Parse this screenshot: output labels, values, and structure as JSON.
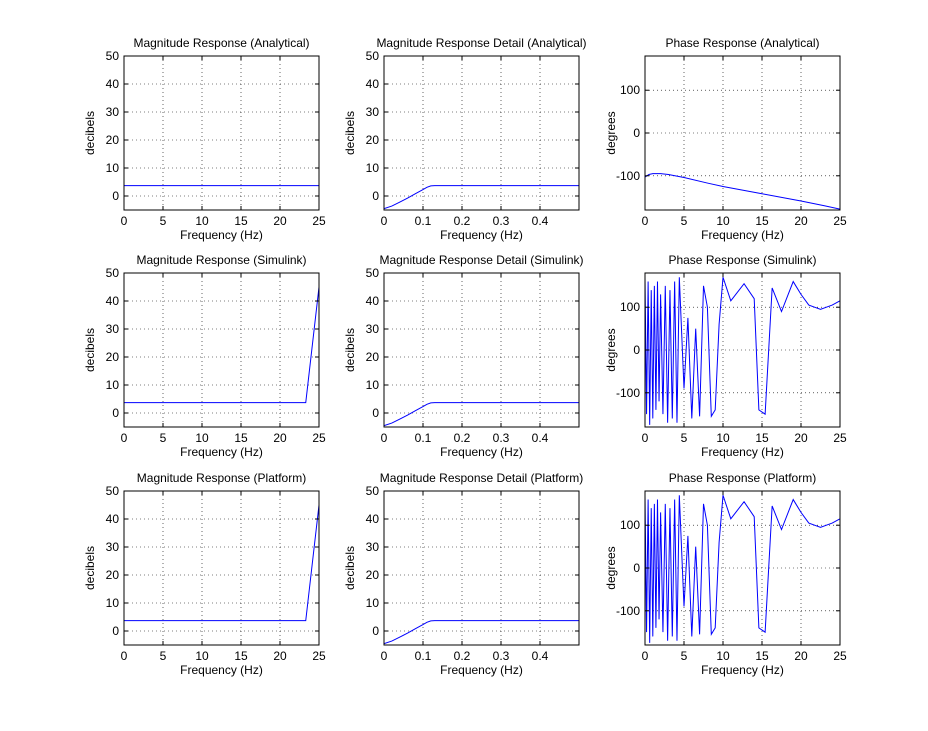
{
  "figure": {
    "background": "#ffffff",
    "line_color": "#0000ff",
    "grid": "dotted"
  },
  "chart_data": [
    {
      "type": "line",
      "title": "Magnitude Response (Analytical)",
      "xlabel": "Frequency (Hz)",
      "ylabel": "decibels",
      "xlim": [
        0,
        25
      ],
      "ylim": [
        -5,
        50
      ],
      "xticks": [
        0,
        5,
        10,
        15,
        20,
        25
      ],
      "xtick_labels": [
        "0",
        "5",
        "10",
        "15",
        "20",
        "25"
      ],
      "yticks": [
        0,
        10,
        20,
        30,
        40,
        50
      ],
      "ytick_labels": [
        "0",
        "10",
        "20",
        "30",
        "40",
        "50"
      ],
      "grid": true,
      "series": [
        {
          "x": [
            0,
            25
          ],
          "y": [
            3.7,
            3.7
          ]
        }
      ]
    },
    {
      "type": "line",
      "title": "Magnitude Response Detail (Analytical)",
      "xlabel": "Frequency (Hz)",
      "ylabel": "decibels",
      "xlim": [
        0,
        0.5
      ],
      "ylim": [
        -5,
        50
      ],
      "xticks": [
        0,
        0.1,
        0.2,
        0.3,
        0.4
      ],
      "xtick_labels": [
        "0",
        "0.1",
        "0.2",
        "0.3",
        "0.4"
      ],
      "yticks": [
        0,
        10,
        20,
        30,
        40,
        50
      ],
      "ytick_labels": [
        "0",
        "10",
        "20",
        "30",
        "40",
        "50"
      ],
      "grid": true,
      "series": [
        {
          "x": [
            0,
            0.02,
            0.04,
            0.06,
            0.08,
            0.1,
            0.11,
            0.12,
            0.13,
            0.15,
            0.2,
            0.3,
            0.4,
            0.5
          ],
          "y": [
            -4.5,
            -3.6,
            -2.2,
            -0.8,
            0.8,
            2.3,
            3.1,
            3.6,
            3.7,
            3.7,
            3.7,
            3.7,
            3.7,
            3.7
          ]
        }
      ]
    },
    {
      "type": "line",
      "title": "Phase Response (Analytical)",
      "xlabel": "Frequency (Hz)",
      "ylabel": "degrees",
      "xlim": [
        0,
        25
      ],
      "ylim": [
        -180,
        180
      ],
      "xticks": [
        0,
        5,
        10,
        15,
        20,
        25
      ],
      "xtick_labels": [
        "0",
        "5",
        "10",
        "15",
        "20",
        "25"
      ],
      "yticks": [
        -100,
        0,
        100
      ],
      "ytick_labels": [
        "-100",
        "0",
        "100"
      ],
      "grid": true,
      "series": [
        {
          "x": [
            0,
            0.5,
            1,
            2,
            3,
            5,
            8,
            10,
            15,
            20,
            23,
            25
          ],
          "y": [
            -103,
            -97,
            -95,
            -95,
            -97,
            -104,
            -117,
            -125,
            -142,
            -159,
            -170,
            -178
          ]
        }
      ]
    },
    {
      "type": "line",
      "title": "Magnitude Response (Simulink)",
      "xlabel": "Frequency (Hz)",
      "ylabel": "decibels",
      "xlim": [
        0,
        25
      ],
      "ylim": [
        -5,
        50
      ],
      "xticks": [
        0,
        5,
        10,
        15,
        20,
        25
      ],
      "xtick_labels": [
        "0",
        "5",
        "10",
        "15",
        "20",
        "25"
      ],
      "yticks": [
        0,
        10,
        20,
        30,
        40,
        50
      ],
      "ytick_labels": [
        "0",
        "10",
        "20",
        "30",
        "40",
        "50"
      ],
      "grid": true,
      "series": [
        {
          "x": [
            0,
            23.3,
            25
          ],
          "y": [
            3.7,
            3.7,
            45
          ]
        }
      ]
    },
    {
      "type": "line",
      "title": "Magnitude Response Detail (Simulink)",
      "xlabel": "Frequency (Hz)",
      "ylabel": "decibels",
      "xlim": [
        0,
        0.5
      ],
      "ylim": [
        -5,
        50
      ],
      "xticks": [
        0,
        0.1,
        0.2,
        0.3,
        0.4
      ],
      "xtick_labels": [
        "0",
        "0.1",
        "0.2",
        "0.3",
        "0.4"
      ],
      "yticks": [
        0,
        10,
        20,
        30,
        40,
        50
      ],
      "ytick_labels": [
        "0",
        "10",
        "20",
        "30",
        "40",
        "50"
      ],
      "grid": true,
      "series": [
        {
          "x": [
            0,
            0.02,
            0.04,
            0.06,
            0.08,
            0.1,
            0.11,
            0.12,
            0.13,
            0.15,
            0.2,
            0.3,
            0.4,
            0.5
          ],
          "y": [
            -4.5,
            -3.6,
            -2.2,
            -0.8,
            0.8,
            2.3,
            3.1,
            3.6,
            3.7,
            3.7,
            3.7,
            3.7,
            3.7,
            3.7
          ]
        }
      ]
    },
    {
      "type": "line",
      "title": "Phase Response (Simulink)",
      "xlabel": "Frequency (Hz)",
      "ylabel": "degrees",
      "xlim": [
        0,
        25
      ],
      "ylim": [
        -180,
        180
      ],
      "xticks": [
        0,
        5,
        10,
        15,
        20,
        25
      ],
      "xtick_labels": [
        "0",
        "5",
        "10",
        "15",
        "20",
        "25"
      ],
      "yticks": [
        -100,
        0,
        100
      ],
      "ytick_labels": [
        "-100",
        "0",
        "100"
      ],
      "grid": true,
      "series": [
        {
          "x": [
            0,
            0.2,
            0.4,
            0.6,
            0.8,
            1.0,
            1.2,
            1.4,
            1.6,
            1.8,
            2.0,
            2.3,
            2.6,
            2.9,
            3.2,
            3.5,
            3.8,
            4.1,
            4.4,
            5.0,
            5.5,
            6.0,
            6.5,
            7.0,
            7.5,
            8.0,
            8.5,
            9.0,
            9.5,
            10.0,
            11.0,
            12.7,
            14.0,
            14.6,
            15.4,
            16.3,
            17.5,
            19.0,
            20.0,
            21.0,
            22.5,
            24.0,
            25.0
          ],
          "y": [
            170,
            -150,
            160,
            -175,
            140,
            -160,
            150,
            -140,
            160,
            -120,
            130,
            -150,
            150,
            -170,
            140,
            -160,
            160,
            -170,
            170,
            -90,
            75,
            -160,
            50,
            -155,
            150,
            100,
            -155,
            -140,
            60,
            170,
            115,
            155,
            120,
            -140,
            -150,
            145,
            90,
            160,
            130,
            105,
            95,
            105,
            115
          ]
        }
      ]
    },
    {
      "type": "line",
      "title": "Magnitude Response (Platform)",
      "xlabel": "Frequency (Hz)",
      "ylabel": "decibels",
      "xlim": [
        0,
        25
      ],
      "ylim": [
        -5,
        50
      ],
      "xticks": [
        0,
        5,
        10,
        15,
        20,
        25
      ],
      "xtick_labels": [
        "0",
        "5",
        "10",
        "15",
        "20",
        "25"
      ],
      "yticks": [
        0,
        10,
        20,
        30,
        40,
        50
      ],
      "ytick_labels": [
        "0",
        "10",
        "20",
        "30",
        "40",
        "50"
      ],
      "grid": true,
      "series": [
        {
          "x": [
            0,
            23.3,
            25
          ],
          "y": [
            3.7,
            3.7,
            45
          ]
        }
      ]
    },
    {
      "type": "line",
      "title": "Magnitude Response Detail (Platform)",
      "xlabel": "Frequency (Hz)",
      "ylabel": "decibels",
      "xlim": [
        0,
        0.5
      ],
      "ylim": [
        -5,
        50
      ],
      "xticks": [
        0,
        0.1,
        0.2,
        0.3,
        0.4
      ],
      "xtick_labels": [
        "0",
        "0.1",
        "0.2",
        "0.3",
        "0.4"
      ],
      "yticks": [
        0,
        10,
        20,
        30,
        40,
        50
      ],
      "ytick_labels": [
        "0",
        "10",
        "20",
        "30",
        "40",
        "50"
      ],
      "grid": true,
      "series": [
        {
          "x": [
            0,
            0.02,
            0.04,
            0.06,
            0.08,
            0.1,
            0.11,
            0.12,
            0.13,
            0.15,
            0.2,
            0.3,
            0.4,
            0.5
          ],
          "y": [
            -4.5,
            -3.6,
            -2.2,
            -0.8,
            0.8,
            2.3,
            3.1,
            3.6,
            3.7,
            3.7,
            3.7,
            3.7,
            3.7,
            3.7
          ]
        }
      ]
    },
    {
      "type": "line",
      "title": "Phase Response (Platform)",
      "xlabel": "Frequency (Hz)",
      "ylabel": "degrees",
      "xlim": [
        0,
        25
      ],
      "ylim": [
        -180,
        180
      ],
      "xticks": [
        0,
        5,
        10,
        15,
        20,
        25
      ],
      "xtick_labels": [
        "0",
        "5",
        "10",
        "15",
        "20",
        "25"
      ],
      "yticks": [
        -100,
        0,
        100
      ],
      "ytick_labels": [
        "-100",
        "0",
        "100"
      ],
      "grid": true,
      "series": [
        {
          "x": [
            0,
            0.2,
            0.4,
            0.6,
            0.8,
            1.0,
            1.2,
            1.4,
            1.6,
            1.8,
            2.0,
            2.3,
            2.6,
            2.9,
            3.2,
            3.5,
            3.8,
            4.1,
            4.4,
            5.0,
            5.5,
            6.0,
            6.5,
            7.0,
            7.5,
            8.0,
            8.5,
            9.0,
            9.5,
            10.0,
            11.0,
            12.7,
            14.0,
            14.6,
            15.4,
            16.3,
            17.5,
            19.0,
            20.0,
            21.0,
            22.5,
            24.0,
            25.0
          ],
          "y": [
            170,
            -150,
            160,
            -175,
            140,
            -160,
            150,
            -140,
            160,
            -120,
            130,
            -150,
            150,
            -170,
            140,
            -160,
            160,
            -170,
            170,
            -90,
            75,
            -160,
            50,
            -155,
            150,
            100,
            -155,
            -140,
            60,
            170,
            115,
            155,
            120,
            -140,
            -150,
            145,
            90,
            160,
            130,
            105,
            95,
            105,
            115
          ]
        }
      ]
    }
  ]
}
